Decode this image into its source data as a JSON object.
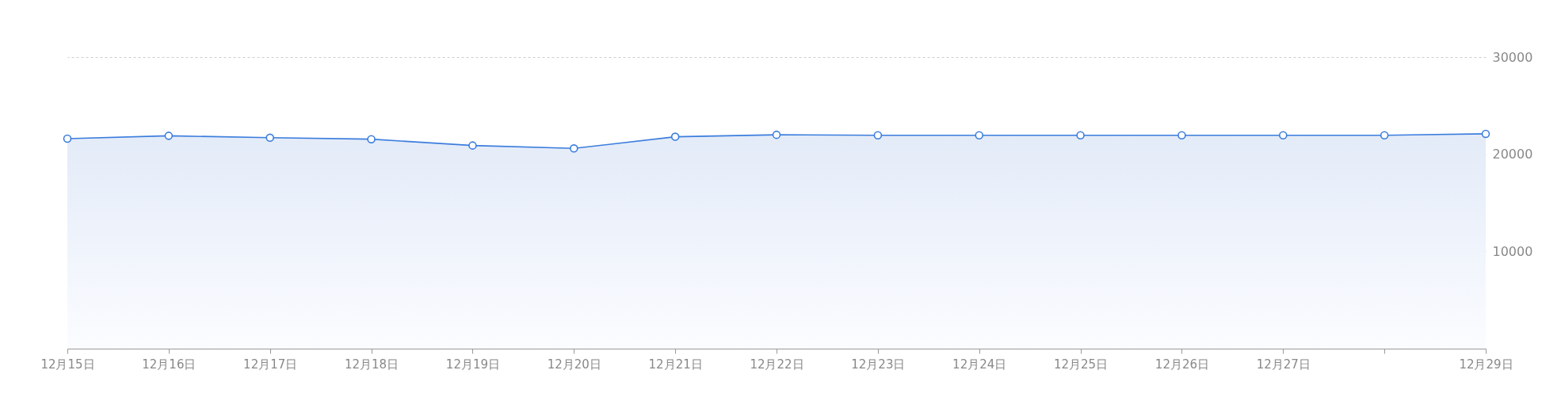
{
  "chart_data": {
    "type": "area",
    "categories": [
      "12月15日",
      "12月16日",
      "12月17日",
      "12月18日",
      "12月19日",
      "12月20日",
      "12月21日",
      "12月22日",
      "12月23日",
      "12月24日",
      "12月25日",
      "12月26日",
      "12月27日",
      null,
      "12月29日"
    ],
    "series": [
      {
        "color": "#3b7ddd",
        "values": [
          21600,
          21900,
          21700,
          21550,
          20900,
          20600,
          21800,
          22000,
          21950,
          21950,
          21950,
          21950,
          21950,
          21950,
          22100
        ]
      }
    ],
    "ylim": [
      0,
      30000
    ],
    "yticks": [
      10000,
      20000,
      30000
    ],
    "grid": "y",
    "marker": "circle",
    "line_style": "solid"
  }
}
